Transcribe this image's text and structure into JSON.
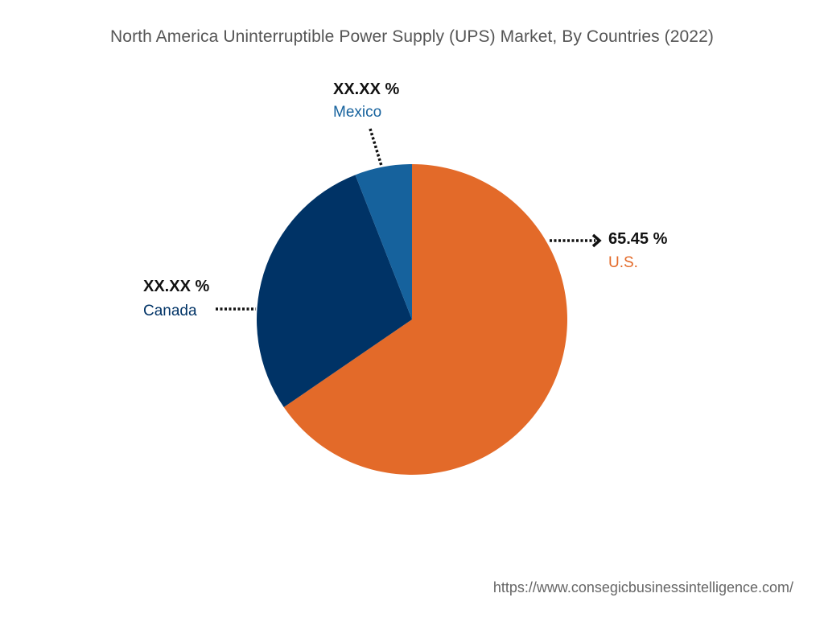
{
  "chart_data": {
    "type": "pie",
    "title": "North America Uninterruptible Power Supply (UPS) Market, By Countries (2022)",
    "slices": [
      {
        "name": "U.S.",
        "value": 65.45,
        "label": "65.45  %",
        "color": "#E36A29"
      },
      {
        "name": "Canada",
        "value": 28.6,
        "label": "XX.XX %",
        "color": "#003366"
      },
      {
        "name": "Mexico",
        "value": 5.95,
        "label": "XX.XX %",
        "color": "#16629D"
      }
    ]
  },
  "footer": {
    "url": "https://www.consegicbusinessintelligence.com/"
  }
}
